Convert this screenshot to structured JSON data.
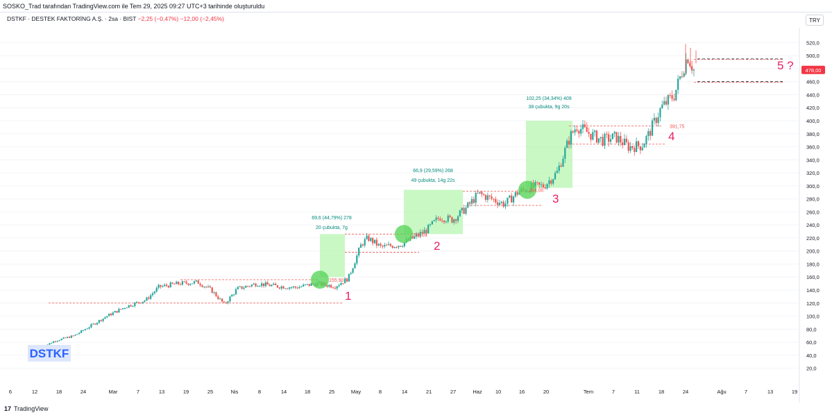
{
  "header": {
    "credit": "SOSKO_Trad tarafından TradingView.com ile Tem 29, 2025 09:27 UTC+3 tarihinde oluşturuldu"
  },
  "legend": {
    "symbol": "DSTKF · DESTEK FAKTORİNG A.Ş. · 2sa · BIST",
    "change": "−2,25 (−0,47%) −12,00 (−2,45%)"
  },
  "currency": "TRY",
  "footer": {
    "logo_mark": "17",
    "brand": "TradingView"
  },
  "colors": {
    "up": "#26a69a",
    "down": "#ef5350",
    "box": "#b7f5b0",
    "circle": "#5ad45a",
    "dashed": "#ef5350",
    "annotation": "#e91e63",
    "price_tag": "#f23645",
    "ticker_box": "#dde6fb",
    "ticker_text": "#2962ff"
  },
  "chart_data": {
    "type": "candlestick",
    "title": "DSTKF · DESTEK FAKTORİNG A.Ş. · 2sa · BIST",
    "y_axis": {
      "range": [
        10,
        530
      ],
      "ticks": [
        "520,0",
        "500,0",
        "480,0",
        "460,0",
        "440,0",
        "420,0",
        "400,0",
        "380,0",
        "360,0",
        "340,0",
        "320,0",
        "300,0",
        "280,0",
        "260,0",
        "240,0",
        "220,0",
        "200,0",
        "180,0",
        "160,0",
        "140,0",
        "120,0",
        "100,0",
        "80,0",
        "60,0",
        "40,0",
        "20,0"
      ]
    },
    "x_axis": {
      "labels": [
        "6",
        "12",
        "18",
        "24",
        "Mar",
        "7",
        "13",
        "19",
        "25",
        "Nis",
        "8",
        "14",
        "18",
        "25",
        "May",
        "8",
        "14",
        "21",
        "27",
        "Haz",
        "10",
        "16",
        "20",
        "Tem",
        "7",
        "11",
        "18",
        "24",
        "Ağu",
        "7",
        "13",
        "19"
      ]
    },
    "price_path": [
      [
        0,
        52
      ],
      [
        0.02,
        62
      ],
      [
        0.05,
        70
      ],
      [
        0.1,
        100
      ],
      [
        0.13,
        115
      ],
      [
        0.16,
        125
      ],
      [
        0.18,
        145
      ],
      [
        0.21,
        150
      ],
      [
        0.24,
        152
      ],
      [
        0.26,
        140
      ],
      [
        0.28,
        118
      ],
      [
        0.3,
        142
      ],
      [
        0.33,
        150
      ],
      [
        0.36,
        146
      ],
      [
        0.39,
        144
      ],
      [
        0.42,
        150
      ],
      [
        0.45,
        146
      ],
      [
        0.47,
        158
      ],
      [
        0.49,
        210
      ],
      [
        0.5,
        220
      ],
      [
        0.52,
        206
      ],
      [
        0.55,
        210
      ],
      [
        0.57,
        220
      ],
      [
        0.59,
        232
      ],
      [
        0.61,
        252
      ],
      [
        0.63,
        248
      ],
      [
        0.65,
        265
      ],
      [
        0.67,
        288
      ],
      [
        0.69,
        280
      ],
      [
        0.71,
        272
      ],
      [
        0.73,
        290
      ],
      [
        0.75,
        298
      ],
      [
        0.77,
        300
      ],
      [
        0.79,
        320
      ],
      [
        0.81,
        375
      ],
      [
        0.82,
        392
      ],
      [
        0.84,
        380
      ],
      [
        0.86,
        370
      ],
      [
        0.88,
        375
      ],
      [
        0.9,
        360
      ],
      [
        0.92,
        362
      ],
      [
        0.93,
        378
      ],
      [
        0.95,
        420
      ],
      [
        0.97,
        440
      ],
      [
        0.98,
        470
      ],
      [
        0.99,
        500
      ],
      [
        1.0,
        478
      ]
    ],
    "current_price": "478,00",
    "annotations": [
      {
        "label": "69,6 (44,79%) 278",
        "sub": "20 çubukta, 7g"
      },
      {
        "label": "66,9 (29,59%) 268",
        "sub": "49 çubukta, 14g 22s"
      },
      {
        "label": "102,25 (34,34%) 409",
        "sub": "38 çubukta, 9g 20s"
      }
    ],
    "levels": [
      "155,90",
      "225,00",
      "294,00",
      "391,75"
    ],
    "wave_labels": [
      "1",
      "2",
      "3",
      "4",
      "5 ?"
    ],
    "ticker_tag": "DSTKF"
  }
}
